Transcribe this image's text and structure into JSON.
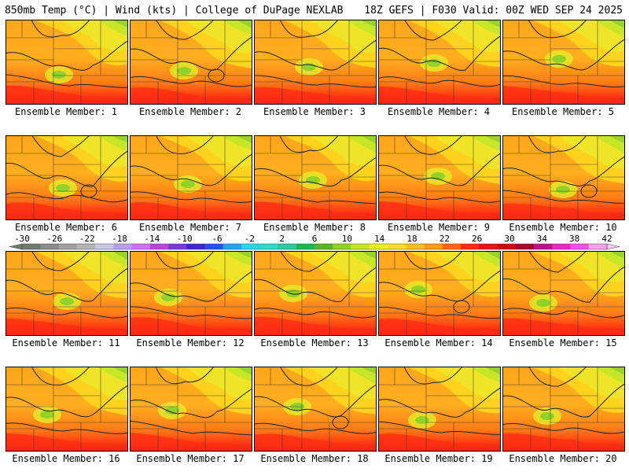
{
  "header": {
    "left": "850mb Temp (°C) | Wind (kts) | College of DuPage NEXLAB",
    "right": "18Z GEFS | F030 Valid: 00Z WED SEP 24 2025"
  },
  "panel_prefix": "Ensemble Member: ",
  "members": [
    {
      "label": "Ensemble Member: 1"
    },
    {
      "label": "Ensemble Member: 2"
    },
    {
      "label": "Ensemble Member: 3"
    },
    {
      "label": "Ensemble Member: 4"
    },
    {
      "label": "Ensemble Member: 5"
    },
    {
      "label": "Ensemble Member: 6"
    },
    {
      "label": "Ensemble Member: 7"
    },
    {
      "label": "Ensemble Member: 8"
    },
    {
      "label": "Ensemble Member: 9"
    },
    {
      "label": "Ensemble Member: 10"
    },
    {
      "label": "Ensemble Member: 11"
    },
    {
      "label": "Ensemble Member: 12"
    },
    {
      "label": "Ensemble Member: 13"
    },
    {
      "label": "Ensemble Member: 14"
    },
    {
      "label": "Ensemble Member: 15"
    },
    {
      "label": "Ensemble Member: 16"
    },
    {
      "label": "Ensemble Member: 17"
    },
    {
      "label": "Ensemble Member: 18"
    },
    {
      "label": "Ensemble Member: 19"
    },
    {
      "label": "Ensemble Member: 20"
    }
  ],
  "colorbar": {
    "labels": [
      "-30",
      "-26",
      "-22",
      "-18",
      "-14",
      "-10",
      "-6",
      "-2",
      "2",
      "6",
      "10",
      "14",
      "18",
      "22",
      "26",
      "30",
      "34",
      "38",
      "42"
    ],
    "colors": [
      "#6e7a6e",
      "#8a8a8a",
      "#a0a0a0",
      "#b4b4b4",
      "#c8c8e6",
      "#b8a0f0",
      "#d070f0",
      "#c040e0",
      "#7a3ad0",
      "#3c28c8",
      "#2850e6",
      "#28a0f0",
      "#30d2f0",
      "#30d8c8",
      "#30c8a0",
      "#20b450",
      "#58b428",
      "#90d228",
      "#c8e628",
      "#f0f028",
      "#ffdc28",
      "#ffbe1e",
      "#ff9a14",
      "#ff6414",
      "#ff2814",
      "#e61414",
      "#c80a0a",
      "#a00a28",
      "#b4148c",
      "#e628c8",
      "#f050e6",
      "#f8a0f0"
    ],
    "temp_min": -30,
    "temp_max": 42
  }
}
